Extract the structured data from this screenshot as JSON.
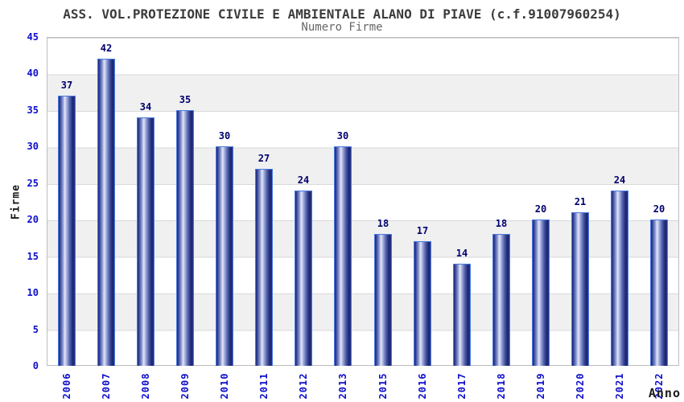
{
  "header": {
    "title": "ASS. VOL.PROTEZIONE CIVILE E AMBIENTALE ALANO DI PIAVE (c.f.91007960254)",
    "subtitle": "Numero Firme"
  },
  "chart_data": {
    "type": "bar",
    "title": "ASS. VOL.PROTEZIONE CIVILE E AMBIENTALE ALANO DI PIAVE (c.f.91007960254)",
    "subtitle": "Numero Firme",
    "xlabel": "Anno",
    "ylabel": "Firme",
    "categories": [
      "2006",
      "2007",
      "2008",
      "2009",
      "2010",
      "2011",
      "2012",
      "2013",
      "2015",
      "2016",
      "2017",
      "2018",
      "2019",
      "2020",
      "2021",
      "2022"
    ],
    "values": [
      37,
      42,
      34,
      35,
      30,
      27,
      24,
      30,
      18,
      17,
      14,
      18,
      20,
      21,
      24,
      20
    ],
    "ylim": [
      0,
      45
    ],
    "ytick_step": 5,
    "yticks": [
      0,
      5,
      10,
      15,
      20,
      25,
      30,
      35,
      40,
      45
    ],
    "grid": "alternating-horizontal-bands-with-gridlines",
    "legend": "none",
    "bar_value_labels": true,
    "x_tick_rotation_deg": -90,
    "colors": {
      "title": "#3c3c3c",
      "subtitle": "#666666",
      "axis_tick_label": "#0d0dcc",
      "axis_title": "#1a1a1a",
      "bar_value_label": "#00006e",
      "band": "#f0f0f0",
      "gridline": "#d9d9d9",
      "plot_border": "#bdbdbd",
      "bar_border": "#4a7ae0",
      "bar_dark": "#1d2874",
      "bar_light": "#e4e8f7"
    }
  }
}
